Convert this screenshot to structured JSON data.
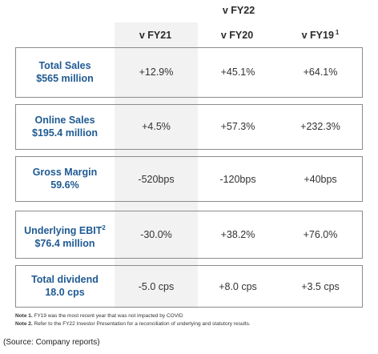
{
  "header": {
    "group_label": "v FY22",
    "columns": [
      {
        "label": "v FY21",
        "sup": ""
      },
      {
        "label": "v FY20",
        "sup": ""
      },
      {
        "label": "v FY19",
        "sup": "1"
      }
    ]
  },
  "rows": [
    {
      "title": "Total Sales",
      "title_sup": "",
      "subtitle": "$565 million",
      "values": [
        "+12.9%",
        "+45.1%",
        "+64.1%"
      ]
    },
    {
      "title": "Online Sales",
      "title_sup": "",
      "subtitle": "$195.4 million",
      "values": [
        "+4.5%",
        "+57.3%",
        "+232.3%"
      ]
    },
    {
      "title": "Gross Margin",
      "title_sup": "",
      "subtitle": "59.6%",
      "values": [
        "-520bps",
        "-120bps",
        "+40bps"
      ]
    },
    {
      "title": "Underlying EBIT",
      "title_sup": "2",
      "subtitle": "$76.4 million",
      "values": [
        "-30.0%",
        "+38.2%",
        "+76.0%"
      ]
    },
    {
      "title": "Total dividend",
      "title_sup": "",
      "subtitle": "18.0 cps",
      "values": [
        "-5.0 cps",
        "+8.0 cps",
        "+3.5 cps"
      ]
    }
  ],
  "notes": [
    {
      "label": "Note 1.",
      "text": "FY19 was the most recent year that was not impacted by COVID"
    },
    {
      "label": "Note 2.",
      "text": "Refer to the FY22 Investor Presentation for a reconciliation of underlying and statutory results."
    }
  ],
  "source": "(Source: Company reports)"
}
